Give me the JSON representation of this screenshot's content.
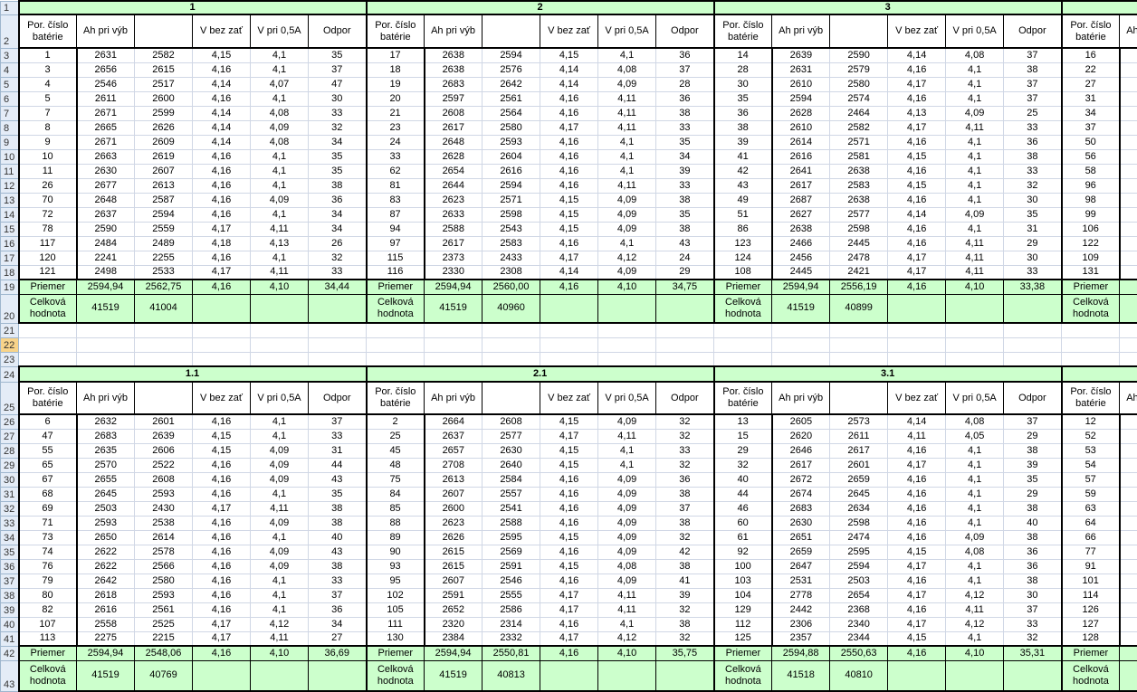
{
  "sheet": {
    "selected_row": 22,
    "accent_green": "#ccffcc",
    "selected_row_color": "#f8d48a"
  },
  "row_numbers": [
    1,
    2,
    3,
    4,
    5,
    6,
    7,
    8,
    9,
    10,
    11,
    12,
    13,
    14,
    15,
    16,
    17,
    18,
    19,
    20,
    21,
    22,
    23,
    24,
    25,
    26,
    27,
    28,
    29,
    30,
    31,
    32,
    33,
    34,
    35,
    36,
    37,
    38,
    39,
    40,
    41,
    42,
    43
  ],
  "headers": [
    "Por. číslo batérie",
    "Ah pri výb",
    "",
    "V bez zať",
    "V pri 0,5A",
    "Odpor"
  ],
  "summary_labels": {
    "avg": "Priemer",
    "total": "Celková hodnota"
  },
  "sections": [
    {
      "blocks": [
        {
          "title": "1",
          "rows": [
            [
              "1",
              "2631",
              "2582",
              "4,15",
              "4,1",
              "35"
            ],
            [
              "3",
              "2656",
              "2615",
              "4,16",
              "4,1",
              "37"
            ],
            [
              "4",
              "2546",
              "2517",
              "4,14",
              "4,07",
              "47"
            ],
            [
              "5",
              "2611",
              "2600",
              "4,16",
              "4,1",
              "30"
            ],
            [
              "7",
              "2671",
              "2599",
              "4,14",
              "4,08",
              "33"
            ],
            [
              "8",
              "2665",
              "2626",
              "4,14",
              "4,09",
              "32"
            ],
            [
              "9",
              "2671",
              "2609",
              "4,14",
              "4,08",
              "34"
            ],
            [
              "10",
              "2663",
              "2619",
              "4,16",
              "4,1",
              "35"
            ],
            [
              "11",
              "2630",
              "2607",
              "4,16",
              "4,1",
              "35"
            ],
            [
              "26",
              "2677",
              "2613",
              "4,16",
              "4,1",
              "38"
            ],
            [
              "70",
              "2648",
              "2587",
              "4,16",
              "4,09",
              "36"
            ],
            [
              "72",
              "2637",
              "2594",
              "4,16",
              "4,1",
              "34"
            ],
            [
              "78",
              "2590",
              "2559",
              "4,17",
              "4,11",
              "34"
            ],
            [
              "117",
              "2484",
              "2489",
              "4,18",
              "4,13",
              "26"
            ],
            [
              "120",
              "2241",
              "2255",
              "4,16",
              "4,1",
              "32"
            ],
            [
              "121",
              "2498",
              "2533",
              "4,17",
              "4,11",
              "33"
            ]
          ],
          "avg": [
            "2594,94",
            "2562,75",
            "4,16",
            "4,10",
            "34,44"
          ],
          "total": [
            "41519",
            "41004"
          ]
        },
        {
          "title": "2",
          "rows": [
            [
              "17",
              "2638",
              "2594",
              "4,15",
              "4,1",
              "36"
            ],
            [
              "18",
              "2638",
              "2576",
              "4,14",
              "4,08",
              "37"
            ],
            [
              "19",
              "2683",
              "2642",
              "4,14",
              "4,09",
              "28"
            ],
            [
              "20",
              "2597",
              "2561",
              "4,16",
              "4,11",
              "36"
            ],
            [
              "21",
              "2608",
              "2564",
              "4,16",
              "4,11",
              "38"
            ],
            [
              "23",
              "2617",
              "2580",
              "4,17",
              "4,11",
              "33"
            ],
            [
              "24",
              "2648",
              "2593",
              "4,16",
              "4,1",
              "35"
            ],
            [
              "33",
              "2628",
              "2604",
              "4,16",
              "4,1",
              "34"
            ],
            [
              "62",
              "2654",
              "2616",
              "4,16",
              "4,1",
              "39"
            ],
            [
              "81",
              "2644",
              "2594",
              "4,16",
              "4,11",
              "33"
            ],
            [
              "83",
              "2623",
              "2571",
              "4,15",
              "4,09",
              "38"
            ],
            [
              "87",
              "2633",
              "2598",
              "4,15",
              "4,09",
              "35"
            ],
            [
              "94",
              "2588",
              "2543",
              "4,15",
              "4,09",
              "38"
            ],
            [
              "97",
              "2617",
              "2583",
              "4,16",
              "4,1",
              "43"
            ],
            [
              "115",
              "2373",
              "2433",
              "4,17",
              "4,12",
              "24"
            ],
            [
              "116",
              "2330",
              "2308",
              "4,14",
              "4,09",
              "29"
            ]
          ],
          "avg": [
            "2594,94",
            "2560,00",
            "4,16",
            "4,10",
            "34,75"
          ],
          "total": [
            "41519",
            "40960"
          ]
        },
        {
          "title": "3",
          "rows": [
            [
              "14",
              "2639",
              "2590",
              "4,14",
              "4,08",
              "37"
            ],
            [
              "28",
              "2631",
              "2579",
              "4,16",
              "4,1",
              "38"
            ],
            [
              "30",
              "2610",
              "2580",
              "4,17",
              "4,1",
              "37"
            ],
            [
              "35",
              "2594",
              "2574",
              "4,16",
              "4,1",
              "37"
            ],
            [
              "36",
              "2628",
              "2464",
              "4,13",
              "4,09",
              "25"
            ],
            [
              "38",
              "2610",
              "2582",
              "4,17",
              "4,11",
              "33"
            ],
            [
              "39",
              "2614",
              "2571",
              "4,16",
              "4,1",
              "36"
            ],
            [
              "41",
              "2616",
              "2581",
              "4,15",
              "4,1",
              "38"
            ],
            [
              "42",
              "2641",
              "2638",
              "4,16",
              "4,1",
              "33"
            ],
            [
              "43",
              "2617",
              "2583",
              "4,15",
              "4,1",
              "32"
            ],
            [
              "49",
              "2687",
              "2638",
              "4,16",
              "4,1",
              "30"
            ],
            [
              "51",
              "2627",
              "2577",
              "4,14",
              "4,09",
              "35"
            ],
            [
              "86",
              "2638",
              "2598",
              "4,16",
              "4,1",
              "31"
            ],
            [
              "123",
              "2466",
              "2445",
              "4,16",
              "4,11",
              "29"
            ],
            [
              "124",
              "2456",
              "2478",
              "4,17",
              "4,11",
              "30"
            ],
            [
              "108",
              "2445",
              "2421",
              "4,17",
              "4,11",
              "33"
            ]
          ],
          "avg": [
            "2594,94",
            "2556,19",
            "4,16",
            "4,10",
            "33,38"
          ],
          "total": [
            "41519",
            "40899"
          ]
        },
        {
          "title": "",
          "partial": true,
          "por": [
            "16",
            "22",
            "27",
            "31",
            "34",
            "37",
            "50",
            "56",
            "58",
            "96",
            "98",
            "99",
            "106",
            "122",
            "109",
            "131"
          ]
        }
      ]
    },
    {
      "blocks": [
        {
          "title": "1.1",
          "rows": [
            [
              "6",
              "2632",
              "2601",
              "4,16",
              "4,1",
              "37"
            ],
            [
              "47",
              "2683",
              "2639",
              "4,15",
              "4,1",
              "33"
            ],
            [
              "55",
              "2635",
              "2606",
              "4,15",
              "4,09",
              "31"
            ],
            [
              "65",
              "2570",
              "2522",
              "4,16",
              "4,09",
              "44"
            ],
            [
              "67",
              "2655",
              "2608",
              "4,16",
              "4,09",
              "43"
            ],
            [
              "68",
              "2645",
              "2593",
              "4,16",
              "4,1",
              "35"
            ],
            [
              "69",
              "2503",
              "2430",
              "4,17",
              "4,11",
              "38"
            ],
            [
              "71",
              "2593",
              "2538",
              "4,16",
              "4,09",
              "38"
            ],
            [
              "73",
              "2650",
              "2614",
              "4,16",
              "4,1",
              "40"
            ],
            [
              "74",
              "2622",
              "2578",
              "4,16",
              "4,09",
              "43"
            ],
            [
              "76",
              "2622",
              "2566",
              "4,16",
              "4,09",
              "38"
            ],
            [
              "79",
              "2642",
              "2580",
              "4,16",
              "4,1",
              "33"
            ],
            [
              "80",
              "2618",
              "2593",
              "4,16",
              "4,1",
              "37"
            ],
            [
              "82",
              "2616",
              "2561",
              "4,16",
              "4,1",
              "36"
            ],
            [
              "107",
              "2558",
              "2525",
              "4,17",
              "4,12",
              "34"
            ],
            [
              "113",
              "2275",
              "2215",
              "4,17",
              "4,11",
              "27"
            ]
          ],
          "avg": [
            "2594,94",
            "2548,06",
            "4,16",
            "4,10",
            "36,69"
          ],
          "total": [
            "41519",
            "40769"
          ]
        },
        {
          "title": "2.1",
          "rows": [
            [
              "2",
              "2664",
              "2608",
              "4,15",
              "4,09",
              "32"
            ],
            [
              "25",
              "2637",
              "2577",
              "4,17",
              "4,11",
              "32"
            ],
            [
              "45",
              "2657",
              "2630",
              "4,15",
              "4,1",
              "33"
            ],
            [
              "48",
              "2708",
              "2640",
              "4,15",
              "4,1",
              "32"
            ],
            [
              "75",
              "2613",
              "2584",
              "4,16",
              "4,09",
              "36"
            ],
            [
              "84",
              "2607",
              "2557",
              "4,16",
              "4,09",
              "38"
            ],
            [
              "85",
              "2600",
              "2541",
              "4,16",
              "4,09",
              "37"
            ],
            [
              "88",
              "2623",
              "2588",
              "4,16",
              "4,09",
              "38"
            ],
            [
              "89",
              "2626",
              "2595",
              "4,15",
              "4,09",
              "32"
            ],
            [
              "90",
              "2615",
              "2569",
              "4,16",
              "4,09",
              "42"
            ],
            [
              "93",
              "2615",
              "2591",
              "4,15",
              "4,08",
              "38"
            ],
            [
              "95",
              "2607",
              "2546",
              "4,16",
              "4,09",
              "41"
            ],
            [
              "102",
              "2591",
              "2555",
              "4,17",
              "4,11",
              "39"
            ],
            [
              "105",
              "2652",
              "2586",
              "4,17",
              "4,11",
              "32"
            ],
            [
              "111",
              "2320",
              "2314",
              "4,16",
              "4,1",
              "38"
            ],
            [
              "130",
              "2384",
              "2332",
              "4,17",
              "4,12",
              "32"
            ]
          ],
          "avg": [
            "2594,94",
            "2550,81",
            "4,16",
            "4,10",
            "35,75"
          ],
          "total": [
            "41519",
            "40813"
          ]
        },
        {
          "title": "3.1",
          "rows": [
            [
              "13",
              "2605",
              "2573",
              "4,14",
              "4,08",
              "37"
            ],
            [
              "15",
              "2620",
              "2611",
              "4,11",
              "4,05",
              "29"
            ],
            [
              "29",
              "2646",
              "2617",
              "4,16",
              "4,1",
              "38"
            ],
            [
              "32",
              "2617",
              "2601",
              "4,17",
              "4,1",
              "39"
            ],
            [
              "40",
              "2672",
              "2659",
              "4,16",
              "4,1",
              "35"
            ],
            [
              "44",
              "2674",
              "2645",
              "4,16",
              "4,1",
              "29"
            ],
            [
              "46",
              "2683",
              "2634",
              "4,16",
              "4,1",
              "38"
            ],
            [
              "60",
              "2630",
              "2598",
              "4,16",
              "4,1",
              "40"
            ],
            [
              "61",
              "2651",
              "2474",
              "4,16",
              "4,09",
              "38"
            ],
            [
              "92",
              "2659",
              "2595",
              "4,15",
              "4,08",
              "36"
            ],
            [
              "100",
              "2647",
              "2594",
              "4,17",
              "4,1",
              "36"
            ],
            [
              "103",
              "2531",
              "2503",
              "4,16",
              "4,1",
              "38"
            ],
            [
              "104",
              "2778",
              "2654",
              "4,17",
              "4,12",
              "30"
            ],
            [
              "129",
              "2442",
              "2368",
              "4,16",
              "4,11",
              "37"
            ],
            [
              "112",
              "2306",
              "2340",
              "4,17",
              "4,12",
              "33"
            ],
            [
              "125",
              "2357",
              "2344",
              "4,15",
              "4,1",
              "32"
            ]
          ],
          "avg": [
            "2594,88",
            "2550,63",
            "4,16",
            "4,10",
            "35,31"
          ],
          "total": [
            "41518",
            "40810"
          ]
        },
        {
          "title": "",
          "partial": true,
          "por": [
            "12",
            "52",
            "53",
            "54",
            "57",
            "59",
            "63",
            "64",
            "66",
            "77",
            "91",
            "101",
            "114",
            "126",
            "127",
            "128"
          ]
        }
      ]
    }
  ]
}
